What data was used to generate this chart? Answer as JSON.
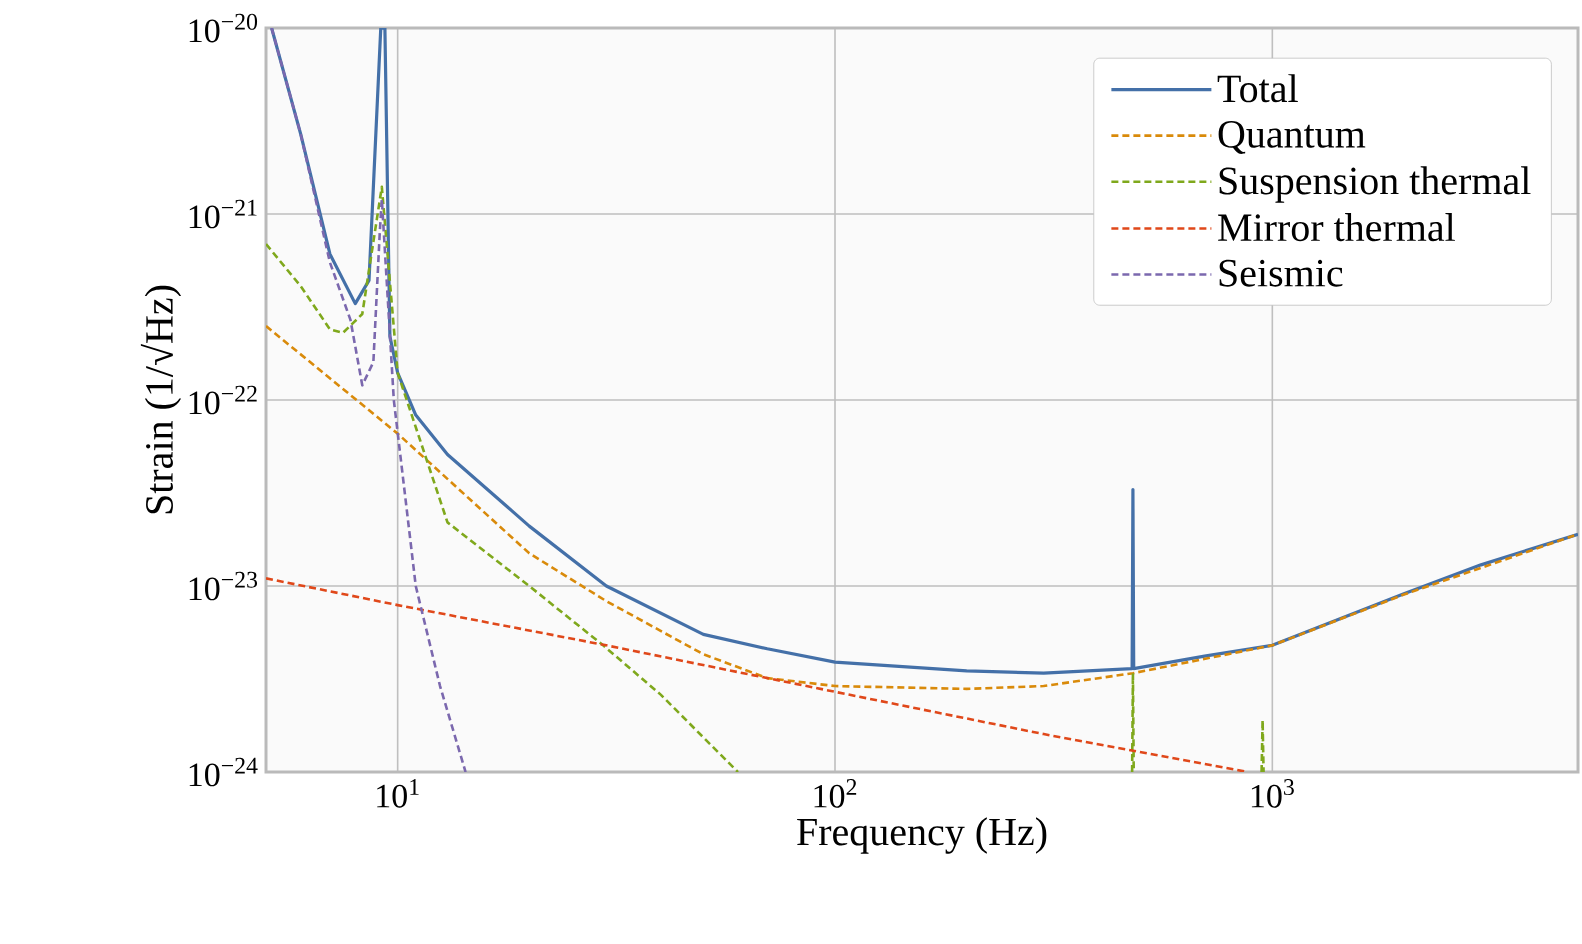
{
  "chart_data": {
    "type": "line",
    "xlabel": "Frequency (Hz)",
    "ylabel": "Strain (1/√Hz)",
    "log": "xy",
    "grid": true,
    "legend": "top right",
    "xlim": [
      5,
      5000
    ],
    "ylim": [
      1e-24,
      1e-20
    ],
    "xticks": [
      {
        "value": 10,
        "label": "10$^{1}$"
      },
      {
        "value": 100,
        "label": "10$^{2}$"
      },
      {
        "value": 1000,
        "label": "10$^{3}$"
      }
    ],
    "yticks": [
      {
        "value": 1e-24,
        "label": "10$^{−24}$"
      },
      {
        "value": 1e-23,
        "label": "10$^{−23}$"
      },
      {
        "value": 1e-22,
        "label": "10$^{−22}$"
      },
      {
        "value": 1e-21,
        "label": "10$^{−21}$"
      },
      {
        "value": 1e-20,
        "label": "10$^{−20}$"
      }
    ],
    "series": [
      {
        "name": "Total",
        "color": "#4470a8",
        "line_style": "solid",
        "x": [
          5.15,
          6,
          7,
          8,
          8.6,
          9.15,
          9.35,
          9.6,
          10,
          11,
          13,
          20,
          30,
          50,
          70,
          100,
          200,
          300,
          478,
          480,
          482,
          700,
          1000,
          2000,
          3000,
          5000
        ],
        "values": [
          1e-20,
          2.7e-21,
          6.1e-22,
          3.3e-22,
          4.4e-22,
          1e-20,
          1e-20,
          2.2e-22,
          1.4e-22,
          8.3e-23,
          5.1e-23,
          2.1e-23,
          1e-23,
          5.5e-24,
          4.6e-24,
          3.9e-24,
          3.5e-24,
          3.4e-24,
          3.6e-24,
          3.3e-23,
          3.6e-24,
          4.2e-24,
          4.8e-24,
          9.1e-24,
          1.3e-23,
          1.9e-23
        ]
      },
      {
        "name": "Quantum",
        "color": "#d98a0a",
        "line_style": "dashed",
        "x": [
          5,
          10,
          20,
          30,
          50,
          70,
          100,
          200,
          300,
          480,
          1000,
          2000,
          5000
        ],
        "values": [
          2.5e-22,
          6.6e-23,
          1.5e-23,
          8.3e-24,
          4.3e-24,
          3.2e-24,
          2.9e-24,
          2.8e-24,
          2.9e-24,
          3.4e-24,
          4.8e-24,
          9e-24,
          1.9e-23
        ]
      },
      {
        "name": "Suspension thermal",
        "color": "#7fa81c",
        "line_style": "dashed",
        "x": [
          5,
          6,
          7,
          7.5,
          8.3,
          9.2,
          10,
          13,
          20,
          29.5,
          40,
          60,
          100,
          478,
          480,
          482,
          700,
          945,
          950,
          955
        ],
        "values": [
          6.9e-22,
          4.1e-22,
          2.4e-22,
          2.3e-22,
          2.9e-22,
          1.4e-21,
          1.4e-22,
          2.2e-23,
          1e-23,
          4.8e-24,
          2.6e-24,
          1e-24,
          null,
          1e-24,
          3.4e-24,
          1e-24,
          null,
          1e-24,
          1.9e-24,
          1e-24
        ]
      },
      {
        "name": "Mirror thermal",
        "color": "#e0481a",
        "line_style": "dashed",
        "x": [
          5,
          10,
          30,
          100,
          300,
          880
        ],
        "values": [
          1.1e-23,
          7.9e-24,
          4.8e-24,
          2.7e-24,
          1.6e-24,
          1e-24
        ]
      },
      {
        "name": "Seismic",
        "color": "#7b68ae",
        "line_style": "dashed",
        "x": [
          5.15,
          6,
          7,
          7.8,
          8.3,
          8.8,
          9.1,
          9.2,
          9.8,
          11,
          12.5,
          14.3
        ],
        "values": [
          1e-20,
          2.7e-21,
          5.5e-22,
          2.7e-22,
          1.2e-22,
          1.6e-22,
          7.9e-22,
          1.2e-21,
          1e-22,
          1e-23,
          2.9e-24,
          1e-24
        ]
      }
    ]
  }
}
